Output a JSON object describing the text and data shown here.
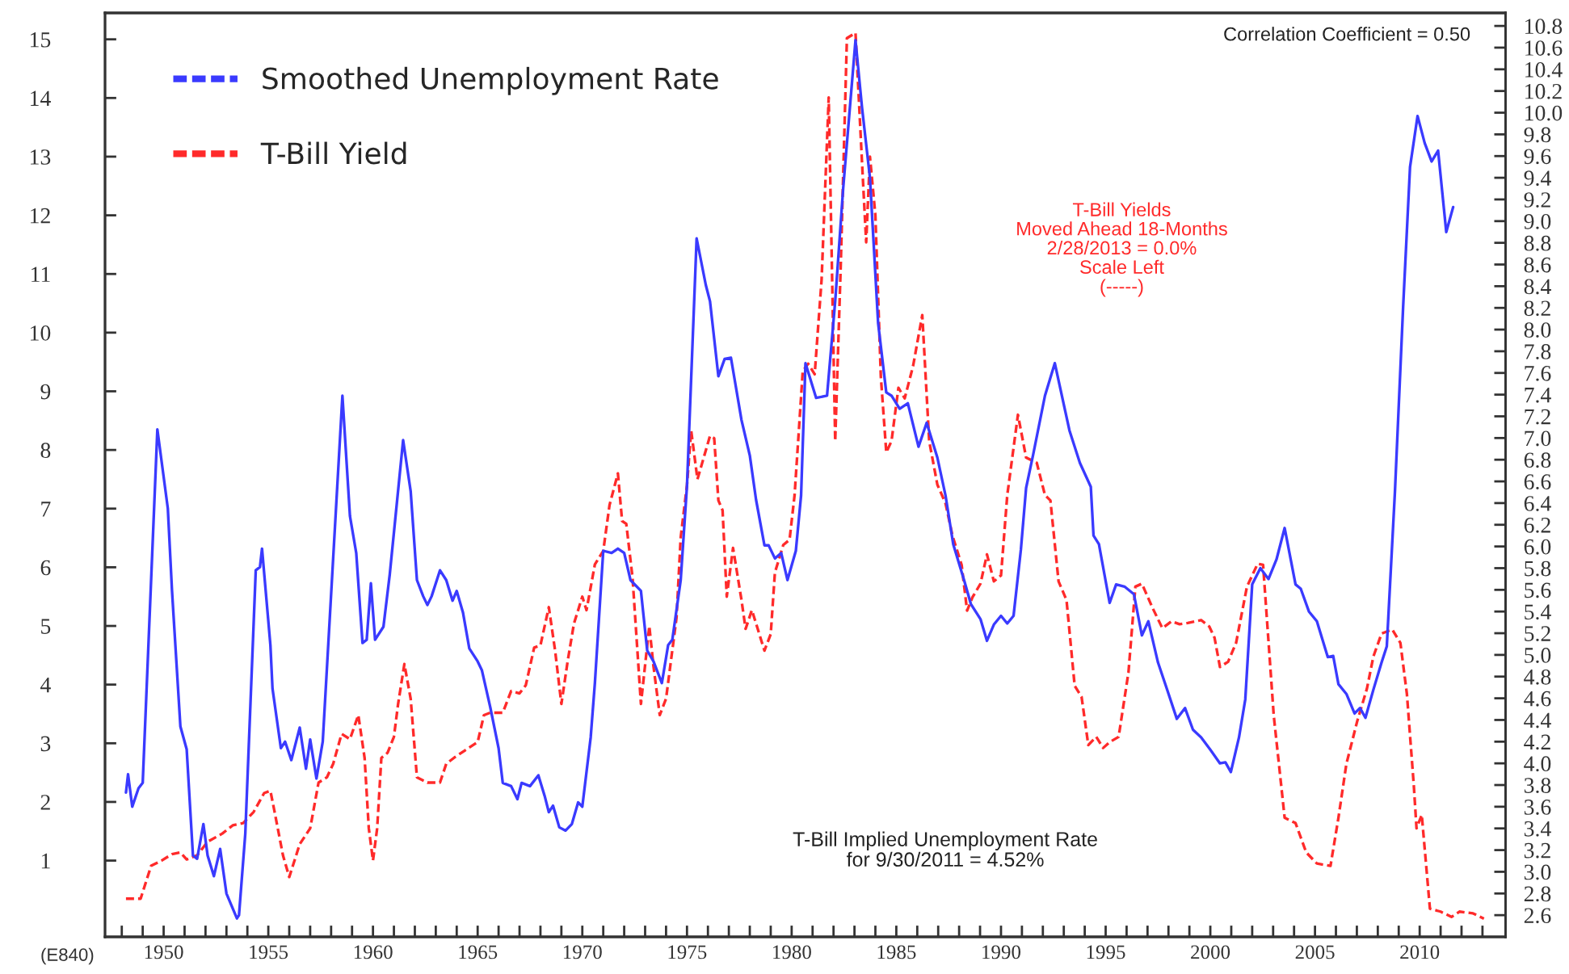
{
  "chart_data": {
    "type": "line",
    "series": [
      {
        "name": "Smoothed Unemployment Rate",
        "color": "#3a3aff",
        "axis": "y2",
        "line_style": "solid",
        "x": [
          1948.2,
          1948.3,
          1948.5,
          1948.8,
          1949.0,
          1949.7,
          1950.2,
          1950.4,
          1950.8,
          1951.1,
          1951.4,
          1951.6,
          1951.9,
          1952.1,
          1952.4,
          1952.7,
          1953.0,
          1953.5,
          1953.6,
          1953.9,
          1954.4,
          1954.6,
          1954.7,
          1955.1,
          1955.2,
          1955.6,
          1955.8,
          1956.1,
          1956.5,
          1956.8,
          1957.0,
          1957.3,
          1957.6,
          1958.54,
          1958.9,
          1959.2,
          1959.5,
          1959.7,
          1959.9,
          1960.1,
          1960.5,
          1960.8,
          1961.44,
          1961.8,
          1962.1,
          1962.4,
          1962.6,
          1962.8,
          1963.2,
          1963.5,
          1963.8,
          1964.0,
          1964.3,
          1964.6,
          1965.0,
          1965.2,
          1965.6,
          1966.0,
          1966.2,
          1966.6,
          1966.9,
          1967.1,
          1967.5,
          1967.9,
          1968.2,
          1968.4,
          1968.6,
          1968.9,
          1969.2,
          1969.5,
          1969.8,
          1970.0,
          1970.4,
          1970.6,
          1971.0,
          1971.4,
          1971.7,
          1972.0,
          1972.3,
          1972.8,
          1973.1,
          1973.4,
          1973.8,
          1974.1,
          1974.3,
          1974.7,
          1975.0,
          1975.46,
          1975.9,
          1976.1,
          1976.5,
          1976.8,
          1977.1,
          1977.6,
          1978.0,
          1978.3,
          1978.7,
          1978.9,
          1979.2,
          1979.5,
          1979.8,
          1980.2,
          1980.45,
          1980.66,
          1981.17,
          1981.69,
          1982.08,
          1982.46,
          1983.05,
          1983.36,
          1983.74,
          1984.13,
          1984.52,
          1984.77,
          1985.16,
          1985.55,
          1986.06,
          1986.45,
          1986.96,
          1987.35,
          1987.72,
          1988.25,
          1988.56,
          1989.02,
          1989.33,
          1989.66,
          1990.0,
          1990.3,
          1990.6,
          1990.95,
          1991.2,
          1991.54,
          1992.1,
          1992.57,
          1993.27,
          1993.77,
          1994.29,
          1994.42,
          1994.68,
          1995.19,
          1995.5,
          1995.9,
          1996.35,
          1996.73,
          1997.04,
          1997.5,
          1997.97,
          1998.4,
          1998.79,
          1999.17,
          1999.56,
          2000.02,
          2000.46,
          2000.72,
          2000.98,
          2001.37,
          2001.67,
          2002.0,
          2002.39,
          2002.78,
          2003.16,
          2003.55,
          2004.07,
          2004.32,
          2004.71,
          2005.09,
          2005.61,
          2005.87,
          2006.12,
          2006.5,
          2006.89,
          2007.15,
          2007.41,
          2007.79,
          2008.18,
          2008.43,
          2008.82,
          2009.21,
          2009.54,
          2009.9,
          2010.24,
          2010.57,
          2010.88,
          2011.27,
          2011.6
        ],
        "values": [
          3.73,
          3.9,
          3.6,
          3.77,
          3.82,
          7.08,
          6.35,
          5.59,
          4.34,
          4.13,
          3.15,
          3.12,
          3.44,
          3.15,
          2.96,
          3.21,
          2.8,
          2.57,
          2.6,
          3.35,
          5.78,
          5.81,
          5.98,
          5.09,
          4.69,
          4.14,
          4.2,
          4.03,
          4.33,
          3.95,
          4.22,
          3.86,
          4.2,
          7.39,
          6.28,
          5.94,
          5.11,
          5.14,
          5.66,
          5.14,
          5.26,
          5.74,
          6.98,
          6.51,
          5.69,
          5.54,
          5.46,
          5.54,
          5.78,
          5.69,
          5.5,
          5.59,
          5.39,
          5.06,
          4.94,
          4.86,
          4.52,
          4.14,
          3.82,
          3.79,
          3.67,
          3.82,
          3.79,
          3.89,
          3.7,
          3.55,
          3.61,
          3.41,
          3.38,
          3.44,
          3.64,
          3.6,
          4.24,
          4.74,
          5.96,
          5.94,
          5.98,
          5.94,
          5.69,
          5.59,
          5.04,
          4.94,
          4.74,
          5.09,
          5.14,
          5.69,
          6.56,
          8.84,
          8.41,
          8.26,
          7.57,
          7.73,
          7.74,
          7.17,
          6.84,
          6.43,
          6.01,
          6.01,
          5.89,
          5.94,
          5.69,
          5.96,
          6.47,
          7.69,
          7.37,
          7.39,
          8.26,
          9.3,
          10.67,
          10.05,
          9.4,
          8.06,
          7.42,
          7.39,
          7.27,
          7.32,
          6.92,
          7.14,
          6.82,
          6.47,
          6.02,
          5.68,
          5.47,
          5.33,
          5.13,
          5.28,
          5.36,
          5.29,
          5.36,
          5.97,
          6.54,
          6.85,
          7.39,
          7.69,
          7.07,
          6.77,
          6.55,
          6.1,
          6.02,
          5.48,
          5.65,
          5.63,
          5.56,
          5.18,
          5.31,
          4.93,
          4.66,
          4.41,
          4.51,
          4.31,
          4.24,
          4.12,
          4.0,
          4.01,
          3.92,
          4.24,
          4.59,
          5.65,
          5.8,
          5.7,
          5.88,
          6.17,
          5.65,
          5.61,
          5.4,
          5.31,
          4.98,
          4.99,
          4.73,
          4.64,
          4.46,
          4.51,
          4.42,
          4.68,
          4.93,
          5.08,
          6.51,
          8.21,
          9.5,
          9.97,
          9.72,
          9.55,
          9.65,
          8.9,
          9.13
        ]
      },
      {
        "name": "T-Bill Yield",
        "color": "#ff2a2a",
        "axis": "y",
        "line_style": "dashed",
        "x": [
          1948.2,
          1948.9,
          1949.4,
          1949.9,
          1950.4,
          1950.8,
          1951.1,
          1951.6,
          1952.1,
          1952.8,
          1953.3,
          1953.8,
          1954.3,
          1954.8,
          1955.1,
          1955.3,
          1955.7,
          1956.0,
          1956.5,
          1957.0,
          1957.4,
          1957.8,
          1958.1,
          1958.5,
          1958.9,
          1959.3,
          1959.6,
          1959.8,
          1960.0,
          1960.2,
          1960.4,
          1960.7,
          1961.0,
          1961.2,
          1961.5,
          1961.8,
          1962.1,
          1962.6,
          1963.2,
          1963.5,
          1963.9,
          1964.4,
          1965.0,
          1965.3,
          1965.6,
          1966.2,
          1966.6,
          1967.0,
          1967.3,
          1967.7,
          1968.0,
          1968.4,
          1968.7,
          1969.0,
          1969.3,
          1969.6,
          1970.0,
          1970.2,
          1970.6,
          1971.0,
          1971.3,
          1971.7,
          1971.9,
          1972.1,
          1972.4,
          1972.8,
          1973.2,
          1973.4,
          1973.7,
          1974.0,
          1974.5,
          1974.7,
          1975.0,
          1975.2,
          1975.5,
          1975.8,
          1976.1,
          1976.3,
          1976.5,
          1976.7,
          1976.9,
          1977.2,
          1977.6,
          1977.8,
          1978.1,
          1978.3,
          1978.7,
          1979.0,
          1979.2,
          1979.6,
          1979.9,
          1980.14,
          1980.53,
          1980.79,
          1981.1,
          1981.43,
          1981.77,
          1982.08,
          1982.34,
          1982.64,
          1983.05,
          1983.36,
          1983.56,
          1983.74,
          1984.0,
          1984.26,
          1984.52,
          1984.77,
          1985.1,
          1985.4,
          1985.8,
          1986.24,
          1986.57,
          1986.96,
          1987.35,
          1987.68,
          1988.12,
          1988.38,
          1988.64,
          1989.02,
          1989.33,
          1989.66,
          1990.0,
          1990.3,
          1990.81,
          1991.2,
          1991.71,
          1992.1,
          1992.36,
          1992.75,
          1993.13,
          1993.52,
          1993.85,
          1994.17,
          1994.55,
          1994.88,
          1995.19,
          1995.62,
          1996.09,
          1996.42,
          1996.73,
          1997.25,
          1997.71,
          1998.15,
          1998.53,
          1998.92,
          1999.56,
          1999.95,
          2000.2,
          2000.46,
          2000.85,
          2001.23,
          2001.75,
          2002.26,
          2002.52,
          2003.03,
          2003.55,
          2004.07,
          2004.58,
          2005.09,
          2005.74,
          2006.12,
          2006.5,
          2007.02,
          2007.48,
          2007.79,
          2008.18,
          2008.69,
          2009.08,
          2009.39,
          2009.72,
          2009.85,
          2010.1,
          2010.49,
          2011.0,
          2011.52,
          2011.9,
          2012.55,
          2013.07
        ],
        "values": [
          0.35,
          0.35,
          0.91,
          1.0,
          1.11,
          1.14,
          1.02,
          1.09,
          1.32,
          1.46,
          1.6,
          1.64,
          1.83,
          2.15,
          2.19,
          1.83,
          1.09,
          0.72,
          1.28,
          1.55,
          2.33,
          2.42,
          2.65,
          3.16,
          3.07,
          3.48,
          2.75,
          1.55,
          1.0,
          1.55,
          2.75,
          2.84,
          3.11,
          3.67,
          4.35,
          3.76,
          2.42,
          2.33,
          2.33,
          2.65,
          2.76,
          2.88,
          3.02,
          3.48,
          3.52,
          3.52,
          3.89,
          3.85,
          3.99,
          4.63,
          4.67,
          5.32,
          4.58,
          3.67,
          4.4,
          5.04,
          5.5,
          5.27,
          6.05,
          6.28,
          7.06,
          7.6,
          6.79,
          6.74,
          5.82,
          3.67,
          5.0,
          4.31,
          3.48,
          3.76,
          5.14,
          6.51,
          7.4,
          8.33,
          7.5,
          7.87,
          8.24,
          8.2,
          7.14,
          6.97,
          5.5,
          6.33,
          5.45,
          4.95,
          5.27,
          5.04,
          4.58,
          4.86,
          5.91,
          6.38,
          6.47,
          7.23,
          9.34,
          9.47,
          9.29,
          10.9,
          14.01,
          8.15,
          11.08,
          15.02,
          15.11,
          12.91,
          11.54,
          13.0,
          12.0,
          9.25,
          7.96,
          8.15,
          9.06,
          8.88,
          9.43,
          10.3,
          8.15,
          7.41,
          7.09,
          6.54,
          6.04,
          5.26,
          5.49,
          5.72,
          6.22,
          5.76,
          5.86,
          7.23,
          8.6,
          7.87,
          7.78,
          7.23,
          7.14,
          5.76,
          5.44,
          3.98,
          3.79,
          2.97,
          3.11,
          2.92,
          3.02,
          3.11,
          4.21,
          5.67,
          5.72,
          5.3,
          4.96,
          5.08,
          5.03,
          5.05,
          5.1,
          4.99,
          4.8,
          4.3,
          4.39,
          4.71,
          5.67,
          6.06,
          6.04,
          3.47,
          1.73,
          1.64,
          1.14,
          0.95,
          0.91,
          1.73,
          2.65,
          3.38,
          3.93,
          4.48,
          4.87,
          4.94,
          4.71,
          3.84,
          2.28,
          1.55,
          1.78,
          0.18,
          0.13,
          0.04,
          0.13,
          0.1,
          0.01
        ]
      }
    ],
    "xlim": [
      1947.2,
      2014.1
    ],
    "xticks": [
      {
        "value": 1948,
        "label": null
      },
      {
        "value": 1949,
        "label": null
      },
      1950,
      {
        "value": 1951,
        "label": null
      },
      {
        "value": 1952,
        "label": null
      },
      {
        "value": 1953,
        "label": null
      },
      {
        "value": 1954,
        "label": null
      },
      1955,
      {
        "value": 1956,
        "label": null
      },
      {
        "value": 1957,
        "label": null
      },
      {
        "value": 1958,
        "label": null
      },
      {
        "value": 1959,
        "label": null
      },
      1960,
      {
        "value": 1961,
        "label": null
      },
      {
        "value": 1962,
        "label": null
      },
      {
        "value": 1963,
        "label": null
      },
      {
        "value": 1964,
        "label": null
      },
      1965,
      {
        "value": 1966,
        "label": null
      },
      {
        "value": 1967,
        "label": null
      },
      {
        "value": 1968,
        "label": null
      },
      {
        "value": 1969,
        "label": null
      },
      1970,
      {
        "value": 1971,
        "label": null
      },
      {
        "value": 1972,
        "label": null
      },
      {
        "value": 1973,
        "label": null
      },
      {
        "value": 1974,
        "label": null
      },
      1975,
      {
        "value": 1976,
        "label": null
      },
      {
        "value": 1977,
        "label": null
      },
      {
        "value": 1978,
        "label": null
      },
      {
        "value": 1979,
        "label": null
      },
      1980,
      {
        "value": 1981,
        "label": null
      },
      {
        "value": 1982,
        "label": null
      },
      {
        "value": 1983,
        "label": null
      },
      {
        "value": 1984,
        "label": null
      },
      1985,
      {
        "value": 1986,
        "label": null
      },
      {
        "value": 1987,
        "label": null
      },
      {
        "value": 1988,
        "label": null
      },
      {
        "value": 1989,
        "label": null
      },
      1990,
      {
        "value": 1991,
        "label": null
      },
      {
        "value": 1992,
        "label": null
      },
      {
        "value": 1993,
        "label": null
      },
      {
        "value": 1994,
        "label": null
      },
      1995,
      {
        "value": 1996,
        "label": null
      },
      {
        "value": 1997,
        "label": null
      },
      {
        "value": 1998,
        "label": null
      },
      {
        "value": 1999,
        "label": null
      },
      2000,
      {
        "value": 2001,
        "label": null
      },
      {
        "value": 2002,
        "label": null
      },
      {
        "value": 2003,
        "label": null
      },
      {
        "value": 2004,
        "label": null
      },
      2005,
      {
        "value": 2006,
        "label": null
      },
      {
        "value": 2007,
        "label": null
      },
      {
        "value": 2008,
        "label": null
      },
      {
        "value": 2009,
        "label": null
      },
      2010,
      {
        "value": 2011,
        "label": null
      },
      {
        "value": 2012,
        "label": null
      },
      {
        "value": 2013,
        "label": null
      }
    ],
    "ylim": [
      -0.3,
      15.45
    ],
    "yticks": [
      1,
      2,
      3,
      4,
      5,
      6,
      7,
      8,
      9,
      10,
      11,
      12,
      13,
      14,
      15
    ],
    "y2lim": [
      2.4,
      10.92
    ],
    "y2ticks": [
      {
        "value": 2.6,
        "label": "2.6"
      },
      {
        "value": 2.8,
        "label": "2.8"
      },
      {
        "value": 3.0,
        "label": "3.0"
      },
      {
        "value": 3.2,
        "label": "3.2"
      },
      {
        "value": 3.4,
        "label": "3.4"
      },
      {
        "value": 3.6,
        "label": "3.6"
      },
      {
        "value": 3.8,
        "label": "3.8"
      },
      {
        "value": 4.0,
        "label": "4.0"
      },
      {
        "value": 4.2,
        "label": "4.2"
      },
      {
        "value": 4.4,
        "label": "4.4"
      },
      {
        "value": 4.6,
        "label": "4.6"
      },
      {
        "value": 4.8,
        "label": "4.8"
      },
      {
        "value": 5.0,
        "label": "5.0"
      },
      {
        "value": 5.2,
        "label": "5.2"
      },
      {
        "value": 5.4,
        "label": "5.4"
      },
      {
        "value": 5.6,
        "label": "5.6"
      },
      {
        "value": 5.8,
        "label": "5.8"
      },
      {
        "value": 6.0,
        "label": "6.0"
      },
      {
        "value": 6.2,
        "label": "6.2"
      },
      {
        "value": 6.4,
        "label": "6.4"
      },
      {
        "value": 6.6,
        "label": "6.6"
      },
      {
        "value": 6.8,
        "label": "6.8"
      },
      {
        "value": 7.0,
        "label": "7.0"
      },
      {
        "value": 7.2,
        "label": "7.2"
      },
      {
        "value": 7.4,
        "label": "7.4"
      },
      {
        "value": 7.6,
        "label": "7.6"
      },
      {
        "value": 7.8,
        "label": "7.8"
      },
      {
        "value": 8.0,
        "label": "8.0"
      },
      {
        "value": 8.2,
        "label": "8.2"
      },
      {
        "value": 8.4,
        "label": "8.4"
      },
      {
        "value": 8.6,
        "label": "8.6"
      },
      {
        "value": 8.8,
        "label": "8.8"
      },
      {
        "value": 9.0,
        "label": "9.0"
      },
      {
        "value": 9.2,
        "label": "9.2"
      },
      {
        "value": 9.4,
        "label": "9.4"
      },
      {
        "value": 9.6,
        "label": "9.6"
      },
      {
        "value": 9.8,
        "label": "9.8"
      },
      {
        "value": 10.0,
        "label": "10.0"
      },
      {
        "value": 10.2,
        "label": "10.2"
      },
      {
        "value": 10.4,
        "label": "10.4"
      },
      {
        "value": 10.6,
        "label": "10.6"
      },
      {
        "value": 10.8,
        "label": "10.8"
      }
    ],
    "annotations": [
      "Correlation Coefficient = 0.50",
      "T-Bill Yields\nMoved Ahead 18-Months\n2/28/2013 = 0.0%\nScale Left\n(-----)",
      "T-Bill Implied Unemployment Rate\nfor 9/30/2011 = 4.52%",
      "(E840)"
    ],
    "legend": "top left",
    "grid": false
  }
}
